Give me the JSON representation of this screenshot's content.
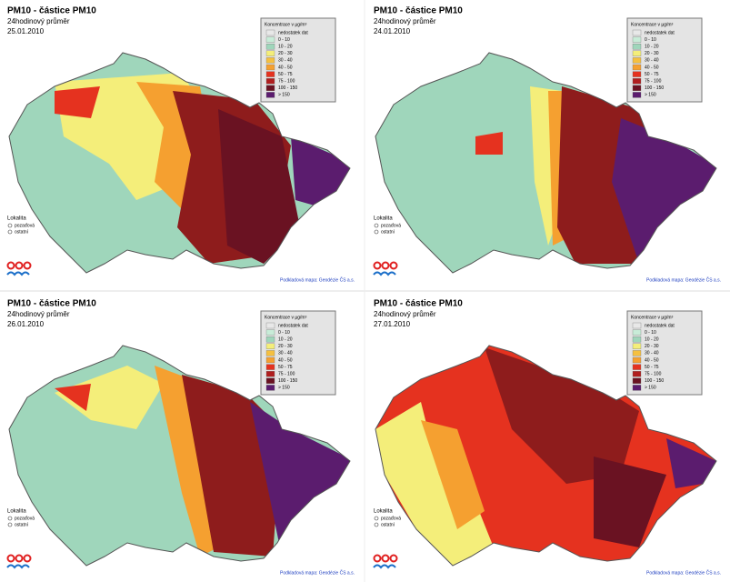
{
  "panels": [
    {
      "title": "PM10 - částice PM10",
      "subtitle": "24hodinový průměr",
      "date": "25.01.2010"
    },
    {
      "title": "PM10 - částice PM10",
      "subtitle": "24hodinový průměr",
      "date": "24.01.2010"
    },
    {
      "title": "PM10 - částice PM10",
      "subtitle": "24hodinový průměr",
      "date": "26.01.2010"
    },
    {
      "title": "PM10 - částice PM10",
      "subtitle": "24hodinový průměr",
      "date": "27.01.2010"
    }
  ],
  "legend": {
    "title": "Koncentrace v µg/m³",
    "items": [
      "nedostatek dat",
      "0 - 10",
      "10 - 20",
      "20 - 30",
      "30 - 40",
      "40 - 50",
      "50 - 75",
      "75 - 100",
      "100 - 150",
      "> 150"
    ]
  },
  "sites": {
    "title": "Lokalita",
    "items": [
      "pozaďová",
      "ostatní"
    ]
  },
  "credit": "Podkladová mapa: Geodézie ČS a.s."
}
